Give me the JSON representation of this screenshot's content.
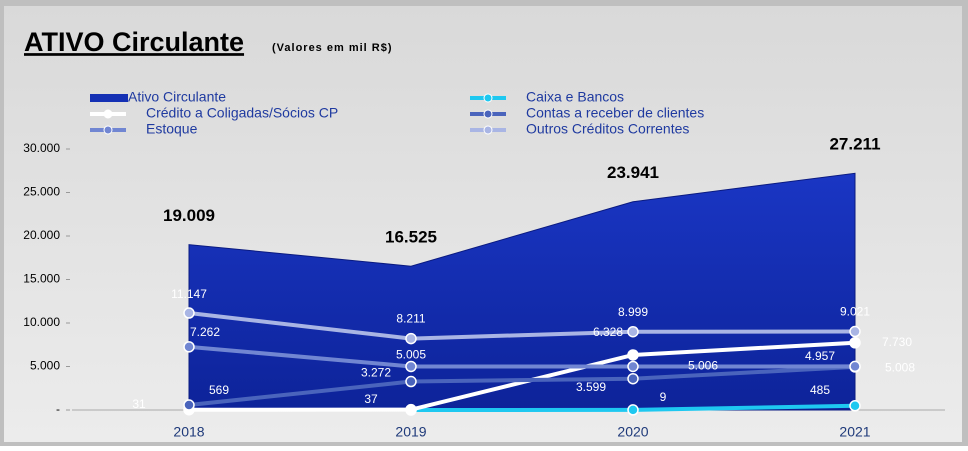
{
  "chart_data": {
    "type": "area_line",
    "title": "ATIVO Circulante",
    "subtitle": "(Valores em mil R$)",
    "categories": [
      "2018",
      "2019",
      "2020",
      "2021"
    ],
    "ylim": [
      0,
      30000
    ],
    "yticks": [
      {
        "value": 0,
        "label": "-"
      },
      {
        "value": 5000,
        "label": "5.000"
      },
      {
        "value": 10000,
        "label": "10.000"
      },
      {
        "value": 15000,
        "label": "15.000"
      },
      {
        "value": 20000,
        "label": "20.000"
      },
      {
        "value": 25000,
        "label": "25.000"
      },
      {
        "value": 30000,
        "label": "30.000"
      }
    ],
    "series": [
      {
        "name": "Ativo Circulante",
        "kind": "area",
        "color": "#1430b4",
        "values": [
          19009,
          16525,
          23941,
          27211
        ],
        "value_labels": [
          "19.009",
          "16.525",
          "23.941",
          "27.211"
        ]
      },
      {
        "name": "Caixa e Bancos",
        "kind": "line",
        "color": "#1ec8f0",
        "values": [
          null,
          0,
          9,
          485
        ],
        "value_labels": [
          null,
          null,
          "9",
          "485"
        ]
      },
      {
        "name": "Crédito a Coligadas/Sócios CP",
        "kind": "line",
        "color": "#ffffff",
        "values": [
          31,
          37,
          6328,
          7730
        ],
        "value_labels": [
          "31",
          "37",
          "6.328",
          "7.730"
        ]
      },
      {
        "name": "Contas a receber de clientes",
        "kind": "line",
        "color": "#4a64bc",
        "values": [
          569,
          3272,
          3599,
          4957
        ],
        "value_labels": [
          "569",
          "3.272",
          "3.599",
          "4.957"
        ]
      },
      {
        "name": "Estoque",
        "kind": "line",
        "color": "#7186d2",
        "values": [
          7262,
          5005,
          5006,
          5008
        ],
        "value_labels": [
          "7.262",
          "5.005",
          "5.006",
          "5.008"
        ]
      },
      {
        "name": "Outros Créditos Correntes",
        "kind": "line",
        "color": "#a9b5e4",
        "values": [
          11147,
          8211,
          8999,
          9021
        ],
        "value_labels": [
          "11.147",
          "8.211",
          "8.999",
          "9.021"
        ]
      }
    ]
  }
}
